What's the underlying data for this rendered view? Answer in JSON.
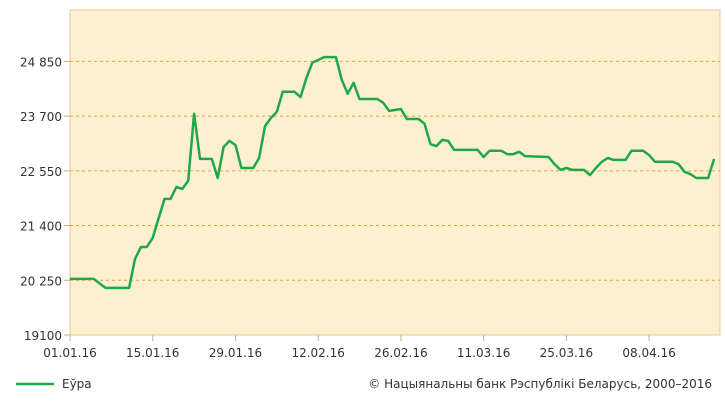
{
  "chart_data": {
    "type": "line",
    "x": [
      "01.01.16",
      "05.01.16",
      "07.01.16",
      "11.01.16",
      "12.01.16",
      "13.01.16",
      "14.01.16",
      "15.01.16",
      "17.01.16",
      "18.01.16",
      "19.01.16",
      "20.01.16",
      "21.01.16",
      "22.01.16",
      "23.01.16",
      "25.01.16",
      "26.01.16",
      "27.01.16",
      "28.01.16",
      "29.01.16",
      "30.01.16",
      "01.02.16",
      "02.02.16",
      "03.02.16",
      "04.02.16",
      "05.02.16",
      "06.02.16",
      "08.02.16",
      "09.02.16",
      "10.02.16",
      "11.02.16",
      "12.02.16",
      "13.02.16",
      "15.02.16",
      "16.02.16",
      "17.02.16",
      "18.02.16",
      "19.02.16",
      "22.02.16",
      "23.02.16",
      "24.02.16",
      "26.02.16",
      "27.02.16",
      "29.02.16",
      "01.03.16",
      "02.03.16",
      "03.03.16",
      "04.03.16",
      "05.03.16",
      "06.03.16",
      "10.03.16",
      "11.03.16",
      "12.03.16",
      "14.03.16",
      "15.03.16",
      "16.03.16",
      "17.03.16",
      "18.03.16",
      "22.03.16",
      "23.03.16",
      "24.03.16",
      "25.03.16",
      "26.03.16",
      "28.03.16",
      "29.03.16",
      "30.03.16",
      "31.03.16",
      "01.04.16",
      "02.04.16",
      "04.04.16",
      "05.04.16",
      "07.04.16",
      "08.04.16",
      "09.04.16",
      "12.04.16",
      "13.04.16",
      "14.04.16",
      "15.04.16",
      "16.04.16",
      "18.04.16",
      "19.04.16"
    ],
    "series": [
      {
        "name": "Еўра",
        "color": "#1fa84a",
        "values": [
          20280,
          20280,
          20090,
          20090,
          20700,
          20950,
          20950,
          21140,
          21960,
          21960,
          22210,
          22170,
          22340,
          23750,
          22800,
          22800,
          22400,
          23050,
          23180,
          23090,
          22610,
          22610,
          22820,
          23490,
          23660,
          23790,
          24210,
          24210,
          24100,
          24500,
          24820,
          24880,
          24940,
          24940,
          24460,
          24170,
          24400,
          24060,
          24060,
          23980,
          23810,
          23850,
          23640,
          23640,
          23540,
          23110,
          23070,
          23200,
          23180,
          22990,
          22990,
          22840,
          22970,
          22970,
          22900,
          22900,
          22950,
          22860,
          22840,
          22690,
          22570,
          22610,
          22570,
          22570,
          22460,
          22610,
          22740,
          22820,
          22780,
          22780,
          22970,
          22970,
          22880,
          22740,
          22740,
          22690,
          22530,
          22480,
          22400,
          22400,
          22800
        ]
      }
    ],
    "xlim": [
      "01.01.16",
      "20.04.16"
    ],
    "xticks": [
      "01.01.16",
      "15.01.16",
      "29.01.16",
      "12.02.16",
      "26.02.16",
      "11.03.16",
      "25.03.16",
      "08.04.16"
    ],
    "ylim": [
      19100,
      25930
    ],
    "yticks": [
      19100,
      {
        "value": 20250,
        "label": "20 250"
      },
      {
        "value": 21400,
        "label": "21 400"
      },
      {
        "value": 22550,
        "label": "22 550"
      },
      {
        "value": 23700,
        "label": "23 700"
      },
      {
        "value": 24850,
        "label": "24 850"
      }
    ],
    "grid": true,
    "legend": "bottom-left",
    "copyright": "© Нацыянальны банк Рэспублікі Беларусь, 2000–2016"
  }
}
